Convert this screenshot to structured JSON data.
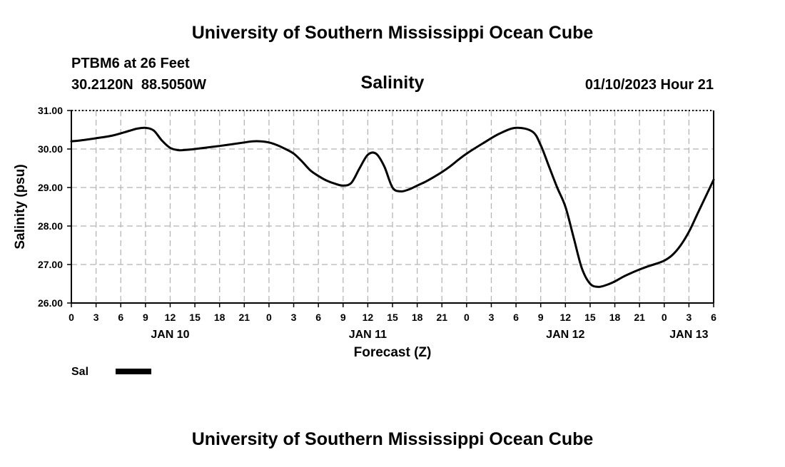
{
  "chart_data": {
    "type": "line",
    "title": "University of Southern Mississippi Ocean Cube",
    "subtitle": "Salinity",
    "station": "PTBM6 at 26 Feet",
    "location": "30.2120N  88.5050W",
    "timestamp": "01/10/2023 Hour 21",
    "xlabel": "Forecast (Z)",
    "ylabel": "Salinity (psu)",
    "footer": "University of Southern Mississippi Ocean Cube",
    "grid": true,
    "legend_position": "bottom-left",
    "ylim": [
      26,
      31
    ],
    "yticks": [
      26,
      27,
      28,
      29,
      30,
      31
    ],
    "ytick_labels": [
      "26.00",
      "27.00",
      "28.00",
      "29.00",
      "30.00",
      "31.00"
    ],
    "xlim": [
      0,
      78
    ],
    "xticks_hours": [
      0,
      3,
      6,
      9,
      12,
      15,
      18,
      21,
      24,
      27,
      30,
      33,
      36,
      39,
      42,
      45,
      48,
      51,
      54,
      57,
      60,
      63,
      66,
      69,
      72,
      75,
      78
    ],
    "xtick_labels": [
      "0",
      "3",
      "6",
      "9",
      "12",
      "15",
      "18",
      "21",
      "0",
      "3",
      "6",
      "9",
      "12",
      "15",
      "18",
      "21",
      "0",
      "3",
      "6",
      "9",
      "12",
      "15",
      "18",
      "21",
      "0",
      "3",
      "6"
    ],
    "date_labels": [
      {
        "hour": 12,
        "label": "JAN 10"
      },
      {
        "hour": 36,
        "label": "JAN 11"
      },
      {
        "hour": 60,
        "label": "JAN 12"
      },
      {
        "hour": 75,
        "label": "JAN 13"
      }
    ],
    "series": [
      {
        "name": "Sal",
        "color": "#000000",
        "x": [
          0,
          1,
          3,
          5,
          7,
          8,
          9,
          10,
          11,
          12,
          13,
          14,
          15,
          18,
          21,
          22,
          23,
          24,
          25,
          26,
          27,
          28,
          29,
          30,
          31,
          32,
          33,
          34,
          35,
          36,
          37,
          38,
          39,
          40,
          41,
          42,
          43,
          44,
          45,
          46,
          47,
          48,
          50,
          52,
          54,
          56,
          57,
          58,
          59,
          60,
          61,
          62,
          63,
          64,
          65,
          66,
          67,
          68,
          69,
          70,
          71,
          72,
          73,
          74,
          75,
          76,
          77,
          78
        ],
        "values": [
          30.2,
          30.22,
          30.28,
          30.35,
          30.47,
          30.53,
          30.55,
          30.48,
          30.22,
          30.03,
          29.97,
          29.98,
          30.0,
          30.08,
          30.17,
          30.2,
          30.2,
          30.17,
          30.1,
          30.0,
          29.88,
          29.68,
          29.45,
          29.3,
          29.18,
          29.1,
          29.05,
          29.12,
          29.5,
          29.85,
          29.88,
          29.55,
          29.0,
          28.9,
          28.95,
          29.05,
          29.15,
          29.27,
          29.4,
          29.55,
          29.72,
          29.88,
          30.15,
          30.4,
          30.55,
          30.45,
          30.1,
          29.55,
          29.0,
          28.5,
          27.7,
          26.9,
          26.5,
          26.42,
          26.47,
          26.56,
          26.68,
          26.78,
          26.87,
          26.95,
          27.02,
          27.1,
          27.25,
          27.5,
          27.85,
          28.3,
          28.75,
          29.2
        ]
      }
    ]
  },
  "legend": {
    "label": "Sal"
  }
}
